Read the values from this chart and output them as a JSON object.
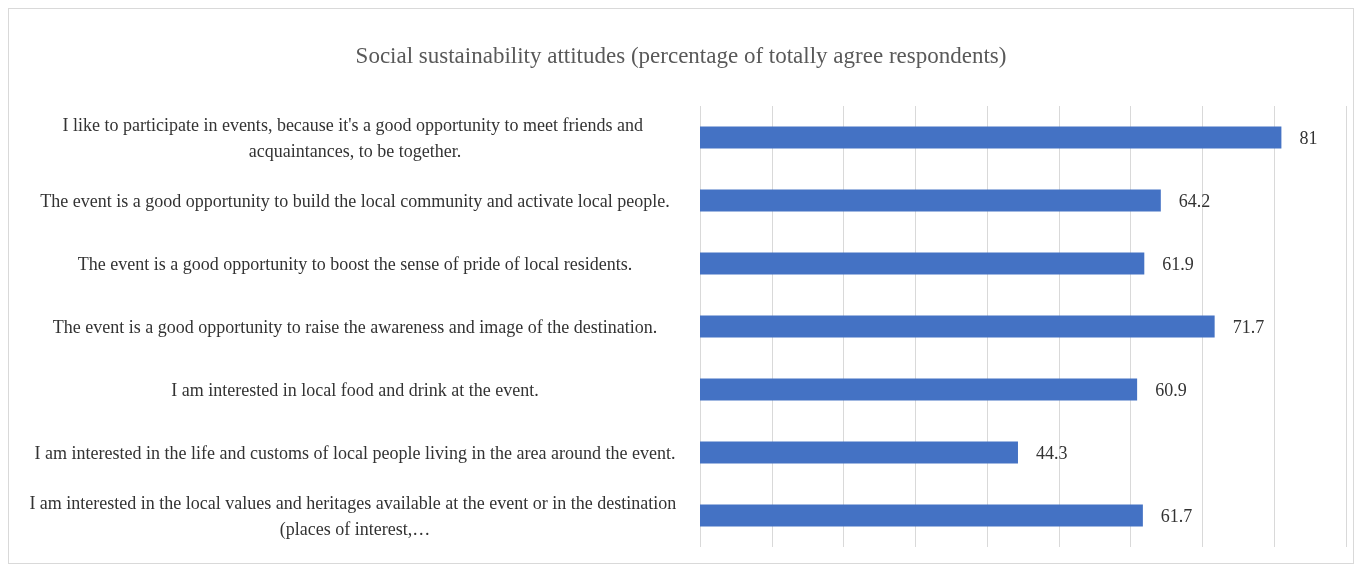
{
  "chart_data": {
    "type": "bar",
    "orientation": "horizontal",
    "title": "Social sustainability attitudes (percentage of totally agree respondents)",
    "categories": [
      "I like to participate in events, because it's a good opportunity to meet friends and acquaintances, to be together.",
      "The event is a good opportunity to build the local community and activate local people.",
      "The event is a good opportunity to boost the sense of pride of local residents.",
      "The event is a good opportunity to raise the awareness and image of the destination.",
      "I am interested in local food and drink at the event.",
      "I am interested in the life and customs of local people living in the area around the event.",
      "I am interested in the local values and heritages available at the event or in the destination (places of interest,…"
    ],
    "values": [
      81,
      64.2,
      61.9,
      71.7,
      60.9,
      44.3,
      61.7
    ],
    "color": "#4472c4",
    "xlim": [
      0,
      90
    ],
    "xticks": [
      {
        "value": 0,
        "label": null
      },
      {
        "value": 10,
        "label": null
      },
      {
        "value": 20,
        "label": null
      },
      {
        "value": 30,
        "label": null
      },
      {
        "value": 40,
        "label": null
      },
      {
        "value": 50,
        "label": null
      },
      {
        "value": 60,
        "label": null
      },
      {
        "value": 70,
        "label": null
      },
      {
        "value": 80,
        "label": null
      },
      {
        "value": 90,
        "label": null
      }
    ],
    "grid": "x",
    "tick_labels": "y",
    "data_labels": true
  }
}
